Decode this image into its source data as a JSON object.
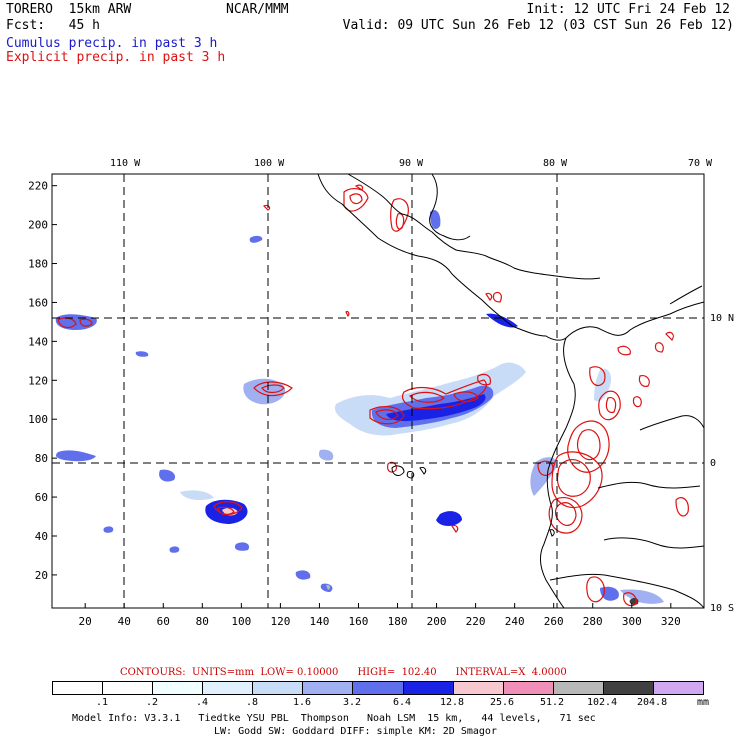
{
  "header": {
    "model": "TORERO  15km ARW",
    "org": "NCAR/MMM",
    "init": "Init: 12 UTC Fri 24 Feb 12",
    "fcst": "Fcst:   45 h",
    "valid": "Valid: 09 UTC Sun 26 Feb 12 (03 CST Sun 26 Feb 12)"
  },
  "legend": {
    "cumulus": "Cumulus precip. in past 3 h",
    "explicit": "Explicit precip. in past 3 h"
  },
  "map": {
    "top_lon_labels": [
      "110 W",
      "100 W",
      "90 W",
      "80 W",
      "70 W"
    ],
    "right_lat_labels": [
      "10 N",
      "0",
      "10 S"
    ],
    "y_ticks": [
      "220",
      "200",
      "180",
      "160",
      "140",
      "120",
      "100",
      "80",
      "60",
      "40",
      "20"
    ],
    "x_ticks": [
      "20",
      "40",
      "60",
      "80",
      "100",
      "120",
      "140",
      "160",
      "180",
      "200",
      "220",
      "240",
      "260",
      "280",
      "300",
      "320"
    ],
    "colors": {
      "cumulus": "#1a1acc",
      "explicit": "#dd1111",
      "coast": "#000000"
    }
  },
  "contours": {
    "line": "CONTOURS:  UNITS=mm  LOW= 0.10000      HIGH=  102.40      INTERVAL=X  4.0000"
  },
  "colorbar": {
    "labels": [
      ".1",
      ".2",
      ".4",
      ".8",
      "1.6",
      "3.2",
      "6.4",
      "12.8",
      "25.6",
      "51.2",
      "102.4",
      "204.8"
    ],
    "unit": "mm",
    "colors": [
      "#ffffff",
      "#ffffff",
      "#f0ffff",
      "#e0f0ff",
      "#c8dcf8",
      "#a0b0f0",
      "#6070ec",
      "#1a22e6",
      "#f8c8d0",
      "#f090b8",
      "#b8b8b8",
      "#404040",
      "#d0a8f0"
    ]
  },
  "footer": {
    "line1": "Model Info: V3.3.1   Tiedtke YSU PBL  Thompson   Noah LSM  15 km,   44 levels,   71 sec",
    "line2": "LW: Godd SW: Goddard DIFF: simple KM: 2D Smagor"
  }
}
